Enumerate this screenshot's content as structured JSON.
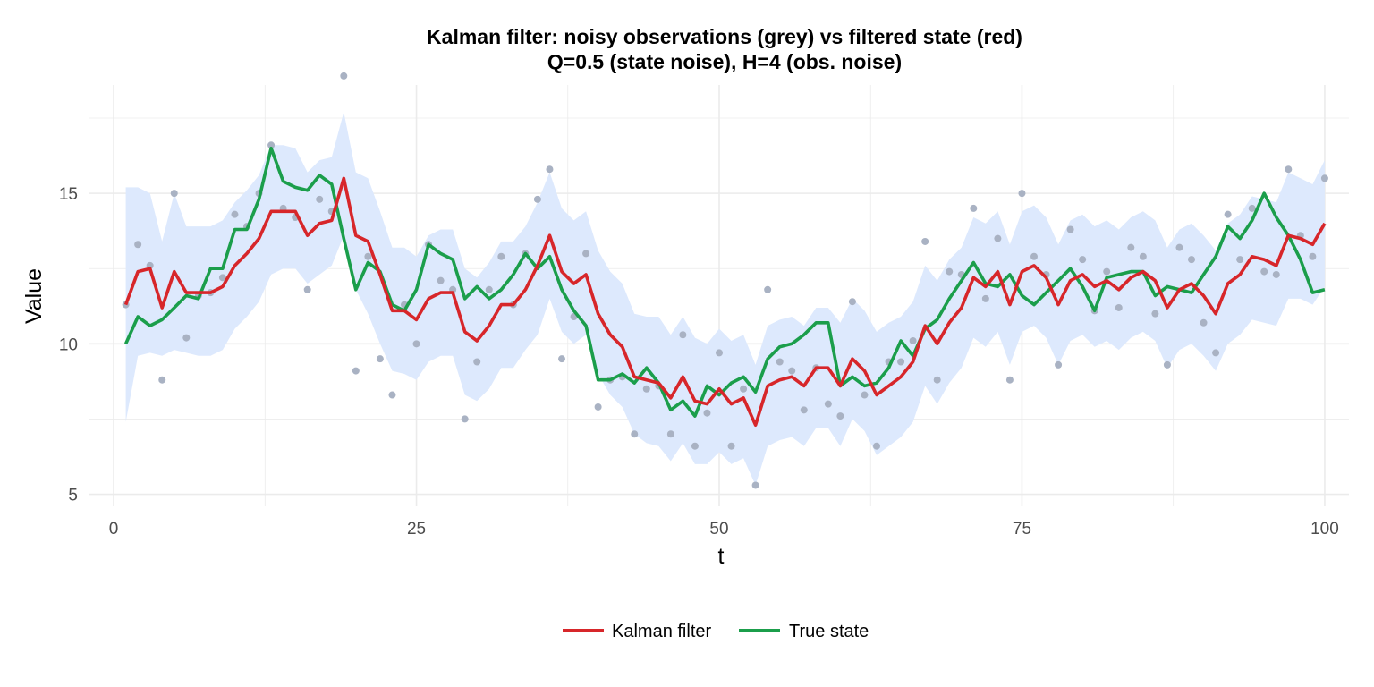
{
  "chart_data": {
    "type": "line",
    "title": "Kalman filter: noisy observations (grey) vs filtered state (red)",
    "subtitle": "Q=0.5 (state noise),  H=4 (obs. noise)",
    "xlabel": "t",
    "ylabel": "Value",
    "xlim": [
      -2,
      102
    ],
    "ylim": [
      4.6,
      18.6
    ],
    "x_ticks": [
      0,
      25,
      50,
      75,
      100
    ],
    "y_ticks": [
      5,
      10,
      15
    ],
    "grid": true,
    "legend_position": "bottom",
    "legend": [
      {
        "label": "Kalman filter",
        "color": "#d7262a"
      },
      {
        "label": "True state",
        "color": "#1b9e4b"
      }
    ],
    "colors": {
      "kalman": "#d7262a",
      "true_state": "#1b9e4b",
      "observations": "#a9b2c3",
      "band": "#dde9fd",
      "grid": "#ebebeb"
    },
    "x": [
      1,
      2,
      3,
      4,
      5,
      6,
      7,
      8,
      9,
      10,
      11,
      12,
      13,
      14,
      15,
      16,
      17,
      18,
      19,
      20,
      21,
      22,
      23,
      24,
      25,
      26,
      27,
      28,
      29,
      30,
      31,
      32,
      33,
      34,
      35,
      36,
      37,
      38,
      39,
      40,
      41,
      42,
      43,
      44,
      45,
      46,
      47,
      48,
      49,
      50,
      51,
      52,
      53,
      54,
      55,
      56,
      57,
      58,
      59,
      60,
      61,
      62,
      63,
      64,
      65,
      66,
      67,
      68,
      69,
      70,
      71,
      72,
      73,
      74,
      75,
      76,
      77,
      78,
      79,
      80,
      81,
      82,
      83,
      84,
      85,
      86,
      87,
      88,
      89,
      90,
      91,
      92,
      93,
      94,
      95,
      96,
      97,
      98,
      99,
      100
    ],
    "observations": [
      11.3,
      13.3,
      12.6,
      8.8,
      15.0,
      10.2,
      11.6,
      11.7,
      12.2,
      14.3,
      13.9,
      15.0,
      16.6,
      14.5,
      14.2,
      11.8,
      14.8,
      14.4,
      18.9,
      9.1,
      12.9,
      9.5,
      8.3,
      11.3,
      10.0,
      13.3,
      12.1,
      11.8,
      7.5,
      9.4,
      11.8,
      12.9,
      11.3,
      13.0,
      14.8,
      15.8,
      9.5,
      10.9,
      13.0,
      7.9,
      8.8,
      8.9,
      7.0,
      8.5,
      8.6,
      7.0,
      10.3,
      6.6,
      7.7,
      9.7,
      6.6,
      8.5,
      5.3,
      11.8,
      9.4,
      9.1,
      7.8,
      9.2,
      8.0,
      7.6,
      11.4,
      8.3,
      6.6,
      9.4,
      9.4,
      10.1,
      13.4,
      8.8,
      12.4,
      12.3,
      14.5,
      11.5,
      13.5,
      8.8,
      15.0,
      12.9,
      12.3,
      9.3,
      13.8,
      12.8,
      11.1,
      12.4,
      11.2,
      13.2,
      12.9,
      11.0,
      9.3,
      13.2,
      12.8,
      10.7,
      9.7,
      14.3,
      12.8,
      14.5,
      12.4,
      12.3,
      15.8,
      13.6,
      12.9,
      15.5
    ],
    "series": [
      {
        "name": "Kalman filter",
        "values": [
          11.3,
          12.4,
          12.5,
          11.2,
          12.4,
          11.7,
          11.7,
          11.7,
          11.9,
          12.6,
          13.0,
          13.5,
          14.4,
          14.4,
          14.4,
          13.6,
          14.0,
          14.1,
          15.5,
          13.6,
          13.4,
          12.3,
          11.1,
          11.1,
          10.8,
          11.5,
          11.7,
          11.7,
          10.4,
          10.1,
          10.6,
          11.3,
          11.3,
          11.8,
          12.6,
          13.6,
          12.4,
          12.0,
          12.3,
          11.0,
          10.3,
          9.9,
          8.9,
          8.8,
          8.7,
          8.2,
          8.9,
          8.1,
          8.0,
          8.5,
          8.0,
          8.2,
          7.3,
          8.6,
          8.8,
          8.9,
          8.6,
          9.2,
          9.2,
          8.6,
          9.5,
          9.1,
          8.3,
          8.6,
          8.9,
          9.4,
          10.6,
          10.0,
          10.7,
          11.2,
          12.2,
          11.9,
          12.4,
          11.3,
          12.4,
          12.6,
          12.2,
          11.3,
          12.1,
          12.3,
          11.9,
          12.1,
          11.8,
          12.2,
          12.4,
          12.1,
          11.2,
          11.8,
          12.0,
          11.6,
          11.0,
          12.0,
          12.3,
          12.9,
          12.8,
          12.6,
          13.6,
          13.5,
          13.3,
          14.0
        ]
      },
      {
        "name": "True state",
        "values": [
          10.0,
          10.9,
          10.6,
          10.8,
          11.2,
          11.6,
          11.5,
          12.5,
          12.5,
          13.8,
          13.8,
          14.8,
          16.5,
          15.4,
          15.2,
          15.1,
          15.6,
          15.3,
          13.5,
          11.8,
          12.7,
          12.4,
          11.3,
          11.1,
          11.8,
          13.3,
          13.0,
          12.8,
          11.5,
          11.9,
          11.5,
          11.8,
          12.3,
          13.0,
          12.5,
          12.9,
          11.8,
          11.1,
          10.6,
          8.8,
          8.8,
          9.0,
          8.7,
          9.2,
          8.7,
          7.8,
          8.1,
          7.6,
          8.6,
          8.3,
          8.7,
          8.9,
          8.4,
          9.5,
          9.9,
          10.0,
          10.3,
          10.7,
          10.7,
          8.6,
          8.9,
          8.6,
          8.7,
          9.2,
          10.1,
          9.6,
          10.5,
          10.8,
          11.5,
          12.1,
          12.7,
          12.0,
          11.9,
          12.3,
          11.6,
          11.3,
          11.7,
          12.1,
          12.5,
          11.9,
          11.1,
          12.2,
          12.3,
          12.4,
          12.4,
          11.6,
          11.9,
          11.8,
          11.7,
          12.3,
          12.9,
          13.9,
          13.5,
          14.1,
          15.0,
          14.2,
          13.6,
          12.8,
          11.7,
          11.8
        ]
      }
    ],
    "band_lower": [
      7.4,
      9.6,
      9.7,
      9.6,
      9.8,
      9.7,
      9.6,
      9.6,
      9.8,
      10.5,
      10.9,
      11.4,
      12.3,
      12.5,
      12.5,
      12.0,
      12.3,
      12.6,
      13.6,
      11.8,
      11.0,
      10.0,
      9.1,
      9.0,
      8.8,
      9.4,
      9.6,
      9.6,
      8.3,
      8.1,
      8.5,
      9.2,
      9.2,
      9.8,
      10.3,
      11.5,
      10.4,
      10.0,
      10.3,
      9.0,
      8.3,
      7.9,
      7.0,
      6.7,
      6.6,
      6.1,
      6.7,
      6.0,
      6.0,
      6.4,
      6.0,
      6.2,
      5.3,
      6.6,
      6.8,
      6.9,
      6.6,
      7.2,
      7.2,
      6.6,
      7.5,
      7.1,
      6.3,
      6.6,
      6.9,
      7.4,
      8.6,
      8.0,
      8.7,
      9.2,
      10.2,
      9.9,
      10.4,
      9.3,
      10.4,
      10.6,
      10.2,
      9.3,
      10.1,
      10.3,
      9.9,
      10.1,
      9.8,
      10.2,
      10.4,
      10.1,
      9.2,
      9.8,
      10.0,
      9.6,
      9.1,
      10.0,
      10.3,
      10.8,
      10.7,
      10.6,
      11.5,
      11.5,
      11.3,
      11.9
    ],
    "band_upper": [
      15.2,
      15.2,
      15.0,
      13.4,
      15.0,
      13.9,
      13.9,
      13.9,
      14.1,
      14.7,
      15.1,
      15.6,
      16.6,
      16.6,
      16.5,
      15.7,
      16.1,
      16.2,
      17.7,
      15.7,
      15.5,
      14.4,
      13.2,
      13.2,
      12.9,
      13.6,
      13.8,
      13.8,
      12.5,
      12.2,
      12.7,
      13.4,
      13.4,
      13.9,
      14.7,
      15.7,
      14.5,
      14.1,
      14.4,
      13.1,
      12.4,
      12.0,
      11.0,
      10.9,
      10.9,
      10.3,
      10.9,
      10.2,
      10.0,
      10.5,
      10.1,
      10.3,
      9.3,
      10.6,
      10.8,
      10.9,
      10.6,
      11.2,
      11.2,
      10.7,
      11.5,
      11.1,
      10.4,
      10.7,
      10.9,
      11.4,
      12.6,
      12.1,
      12.8,
      13.2,
      14.2,
      14.0,
      14.4,
      13.3,
      14.4,
      14.6,
      14.2,
      13.3,
      14.1,
      14.3,
      13.9,
      14.1,
      13.8,
      14.2,
      14.4,
      14.1,
      13.2,
      13.8,
      14.0,
      13.6,
      13.1,
      14.0,
      14.3,
      14.9,
      14.8,
      14.7,
      15.7,
      15.5,
      15.3,
      16.1
    ]
  }
}
